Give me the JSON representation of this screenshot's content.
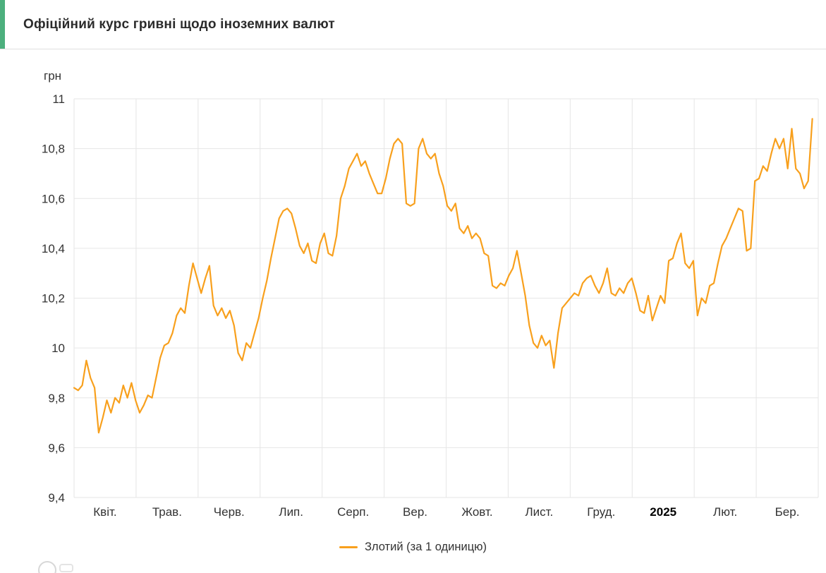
{
  "header": {
    "title": "Офіційний курс гривні щодо іноземних валют"
  },
  "colors": {
    "accent_green": "#4CAF7D",
    "line_orange": "#F8A01D",
    "grid": "#E6E6E6",
    "text": "#333333",
    "bold_tick": "#000000"
  },
  "chart_data": {
    "type": "line",
    "title": "Офіційний курс гривні щодо іноземних валют",
    "unit_label": "грн",
    "ylabel": "грн",
    "xlabel": "",
    "ylim": [
      9.4,
      11
    ],
    "ytick_step": 0.2,
    "yticks": [
      "11",
      "10,8",
      "10,6",
      "10,4",
      "10,2",
      "10",
      "9,8",
      "9,6",
      "9,4"
    ],
    "xticks": [
      "Квіт.",
      "Трав.",
      "Черв.",
      "Лип.",
      "Серп.",
      "Вер.",
      "Жовт.",
      "Лист.",
      "Груд.",
      "2025",
      "Лют.",
      "Бер."
    ],
    "bold_xtick": "2025",
    "grid": true,
    "legend": {
      "label": "Злотий (за 1 одиницю)",
      "position": "bottom"
    },
    "series": [
      {
        "name": "Злотий (за 1 одиницю)",
        "color": "#F8A01D",
        "values": [
          9.84,
          9.83,
          9.85,
          9.95,
          9.88,
          9.84,
          9.66,
          9.72,
          9.79,
          9.74,
          9.8,
          9.78,
          9.85,
          9.8,
          9.86,
          9.79,
          9.74,
          9.77,
          9.81,
          9.8,
          9.88,
          9.96,
          10.01,
          10.02,
          10.06,
          10.13,
          10.16,
          10.14,
          10.25,
          10.34,
          10.28,
          10.22,
          10.28,
          10.33,
          10.17,
          10.13,
          10.16,
          10.12,
          10.15,
          10.09,
          9.98,
          9.95,
          10.02,
          10.0,
          10.06,
          10.12,
          10.2,
          10.27,
          10.36,
          10.44,
          10.52,
          10.55,
          10.56,
          10.54,
          10.48,
          10.41,
          10.38,
          10.42,
          10.35,
          10.34,
          10.42,
          10.46,
          10.38,
          10.37,
          10.45,
          10.6,
          10.65,
          10.72,
          10.75,
          10.78,
          10.73,
          10.75,
          10.7,
          10.66,
          10.62,
          10.62,
          10.68,
          10.76,
          10.82,
          10.84,
          10.82,
          10.58,
          10.57,
          10.58,
          10.8,
          10.84,
          10.78,
          10.76,
          10.78,
          10.7,
          10.65,
          10.57,
          10.55,
          10.58,
          10.48,
          10.46,
          10.49,
          10.44,
          10.46,
          10.44,
          10.38,
          10.37,
          10.25,
          10.24,
          10.26,
          10.25,
          10.29,
          10.32,
          10.39,
          10.3,
          10.21,
          10.09,
          10.02,
          10.0,
          10.05,
          10.01,
          10.03,
          9.92,
          10.06,
          10.16,
          10.18,
          10.2,
          10.22,
          10.21,
          10.26,
          10.28,
          10.29,
          10.25,
          10.22,
          10.26,
          10.32,
          10.22,
          10.21,
          10.24,
          10.22,
          10.26,
          10.28,
          10.22,
          10.15,
          10.14,
          10.21,
          10.11,
          10.16,
          10.21,
          10.18,
          10.35,
          10.36,
          10.42,
          10.46,
          10.34,
          10.32,
          10.35,
          10.13,
          10.2,
          10.18,
          10.25,
          10.26,
          10.34,
          10.41,
          10.44,
          10.48,
          10.52,
          10.56,
          10.55,
          10.39,
          10.4,
          10.67,
          10.68,
          10.73,
          10.71,
          10.78,
          10.84,
          10.8,
          10.84,
          10.72,
          10.88,
          10.72,
          10.7,
          10.64,
          10.67,
          10.92
        ]
      }
    ]
  }
}
